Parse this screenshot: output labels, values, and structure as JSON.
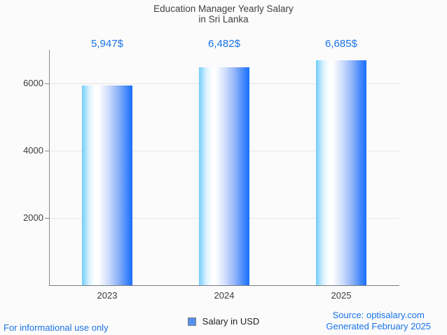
{
  "title_lines": [
    "Education Manager Yearly Salary",
    "in Sri Lanka"
  ],
  "chart_data": {
    "type": "bar",
    "title": "Education Manager Yearly Salary in Sri Lanka",
    "categories": [
      "2023",
      "2024",
      "2025"
    ],
    "series": [
      {
        "name": "Salary in USD",
        "values": [
          5947,
          6482,
          6685
        ]
      }
    ],
    "value_labels": [
      "5,947$",
      "6,482$",
      "6,685$"
    ],
    "xlabel": "",
    "ylabel": "",
    "ylim": [
      0,
      7000
    ],
    "yticks": [
      2000,
      4000,
      6000
    ],
    "grid": true,
    "legend_position": "bottom",
    "colors": {
      "bar_gradient_left": "#6fcdfb",
      "bar_gradient_mid": "#ffffff",
      "bar_gradient_right": "#1a6ffd",
      "value_label": "#1a73e8",
      "gridline": "#e6e6e6",
      "axis": "#8a8a8a",
      "tick_text": "#3c3c3c",
      "title_text": "#424242"
    }
  },
  "legend": {
    "label": "Salary in USD",
    "swatch_color": "#5490f0"
  },
  "footer": {
    "disclaimer": "For informational use only",
    "source": "Source: optisalary.com",
    "generated": "Generated February 2025"
  }
}
